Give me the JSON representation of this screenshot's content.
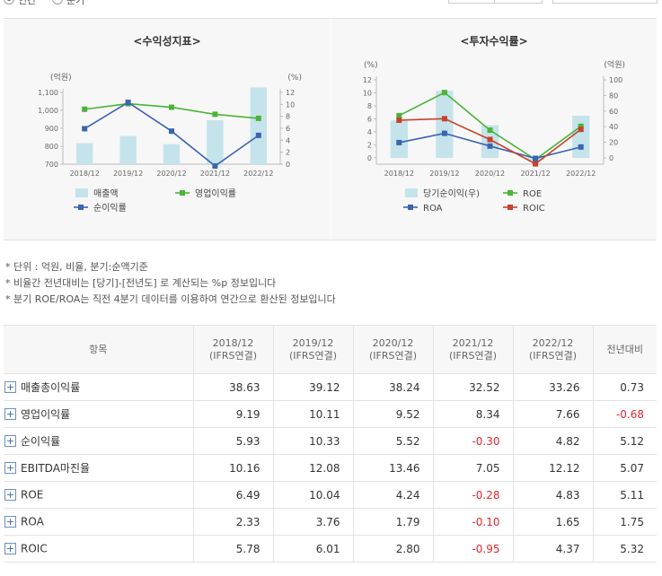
{
  "top": {
    "radio1_label": "연간",
    "radio2_label": "분기"
  },
  "chart_data": [
    {
      "type": "bar",
      "title": "<수익성지표>",
      "left_unit": "(억원)",
      "right_unit": "(%)",
      "categories": [
        "2018/12",
        "2019/12",
        "2020/12",
        "2021/12",
        "2022/12"
      ],
      "left_axis": {
        "min": 700,
        "max": 1100,
        "ticks": [
          "700",
          "800",
          "900",
          "1,000",
          "1,100"
        ]
      },
      "right_axis": {
        "min": 0,
        "max": 12,
        "ticks": [
          "0",
          "2",
          "4",
          "6",
          "8",
          "10",
          "12"
        ]
      },
      "bars": {
        "name": "매출액",
        "values": [
          817,
          857,
          812,
          945,
          1128
        ]
      },
      "lines": [
        {
          "name": "영업이익률",
          "values": [
            9.19,
            10.11,
            9.52,
            8.34,
            7.66
          ]
        },
        {
          "name": "순이익률",
          "values": [
            5.93,
            10.33,
            5.52,
            -0.3,
            4.82
          ]
        }
      ],
      "legend": [
        "매출액",
        "영업이익률",
        "순이익률"
      ]
    },
    {
      "type": "bar",
      "title": "<투자수익률>",
      "left_unit": "(%)",
      "right_unit": "(억원)",
      "categories": [
        "2018/12",
        "2019/12",
        "2020/12",
        "2021/12",
        "2022/12"
      ],
      "left_axis": {
        "min": -1,
        "max": 12,
        "ticks": [
          "0",
          "2",
          "4",
          "6",
          "8",
          "10",
          "12"
        ]
      },
      "right_axis": {
        "min": -8,
        "max": 100,
        "ticks": [
          "0",
          "20",
          "40",
          "60",
          "80",
          "100"
        ]
      },
      "bars": {
        "name": "당기순이익(우)",
        "values": [
          48,
          86,
          42,
          -3,
          54
        ]
      },
      "lines": [
        {
          "name": "ROE",
          "values": [
            6.49,
            10.04,
            4.24,
            -0.28,
            4.83
          ]
        },
        {
          "name": "ROA",
          "values": [
            2.33,
            3.76,
            1.79,
            -0.1,
            1.65
          ]
        },
        {
          "name": "ROIC",
          "values": [
            5.78,
            6.01,
            2.8,
            -0.95,
            4.37
          ]
        }
      ],
      "legend": [
        "당기순이익(우)",
        "ROE",
        "ROA",
        "ROIC"
      ]
    }
  ],
  "colors": {
    "bar": "#c5e3ea",
    "green": "#4ab435",
    "blue": "#3a64b0",
    "red": "#c9412e",
    "negative": "#e0272c"
  },
  "notes": [
    "* 단위 : 억원, 비율, 분기:순액기준",
    "* 비율간 전년대비는 [당기]-[전년도] 로 계산되는 %p 정보입니다",
    "* 분기 ROE/ROA는 직전 4분기 데이터를 이용하여 연간으로 환산된 정보입니다"
  ],
  "table": {
    "headers": [
      {
        "line1": "항목",
        "line2": ""
      },
      {
        "line1": "2018/12",
        "line2": "(IFRS연결)"
      },
      {
        "line1": "2019/12",
        "line2": "(IFRS연결)"
      },
      {
        "line1": "2020/12",
        "line2": "(IFRS연결)"
      },
      {
        "line1": "2021/12",
        "line2": "(IFRS연결)"
      },
      {
        "line1": "2022/12",
        "line2": "(IFRS연결)"
      },
      {
        "line1": "전년대비",
        "line2": ""
      }
    ],
    "rows": [
      {
        "label": "매출총이익률",
        "values": [
          "38.63",
          "39.12",
          "38.24",
          "32.52",
          "33.26",
          "0.73"
        ]
      },
      {
        "label": "영업이익률",
        "values": [
          "9.19",
          "10.11",
          "9.52",
          "8.34",
          "7.66",
          "-0.68"
        ]
      },
      {
        "label": "순이익률",
        "values": [
          "5.93",
          "10.33",
          "5.52",
          "-0.30",
          "4.82",
          "5.12"
        ]
      },
      {
        "label": "EBITDA마진율",
        "values": [
          "10.16",
          "12.08",
          "13.46",
          "7.05",
          "12.12",
          "5.07"
        ]
      },
      {
        "label": "ROE",
        "values": [
          "6.49",
          "10.04",
          "4.24",
          "-0.28",
          "4.83",
          "5.11"
        ]
      },
      {
        "label": "ROA",
        "values": [
          "2.33",
          "3.76",
          "1.79",
          "-0.10",
          "1.65",
          "1.75"
        ]
      },
      {
        "label": "ROIC",
        "values": [
          "5.78",
          "6.01",
          "2.80",
          "-0.95",
          "4.37",
          "5.32"
        ]
      }
    ]
  }
}
